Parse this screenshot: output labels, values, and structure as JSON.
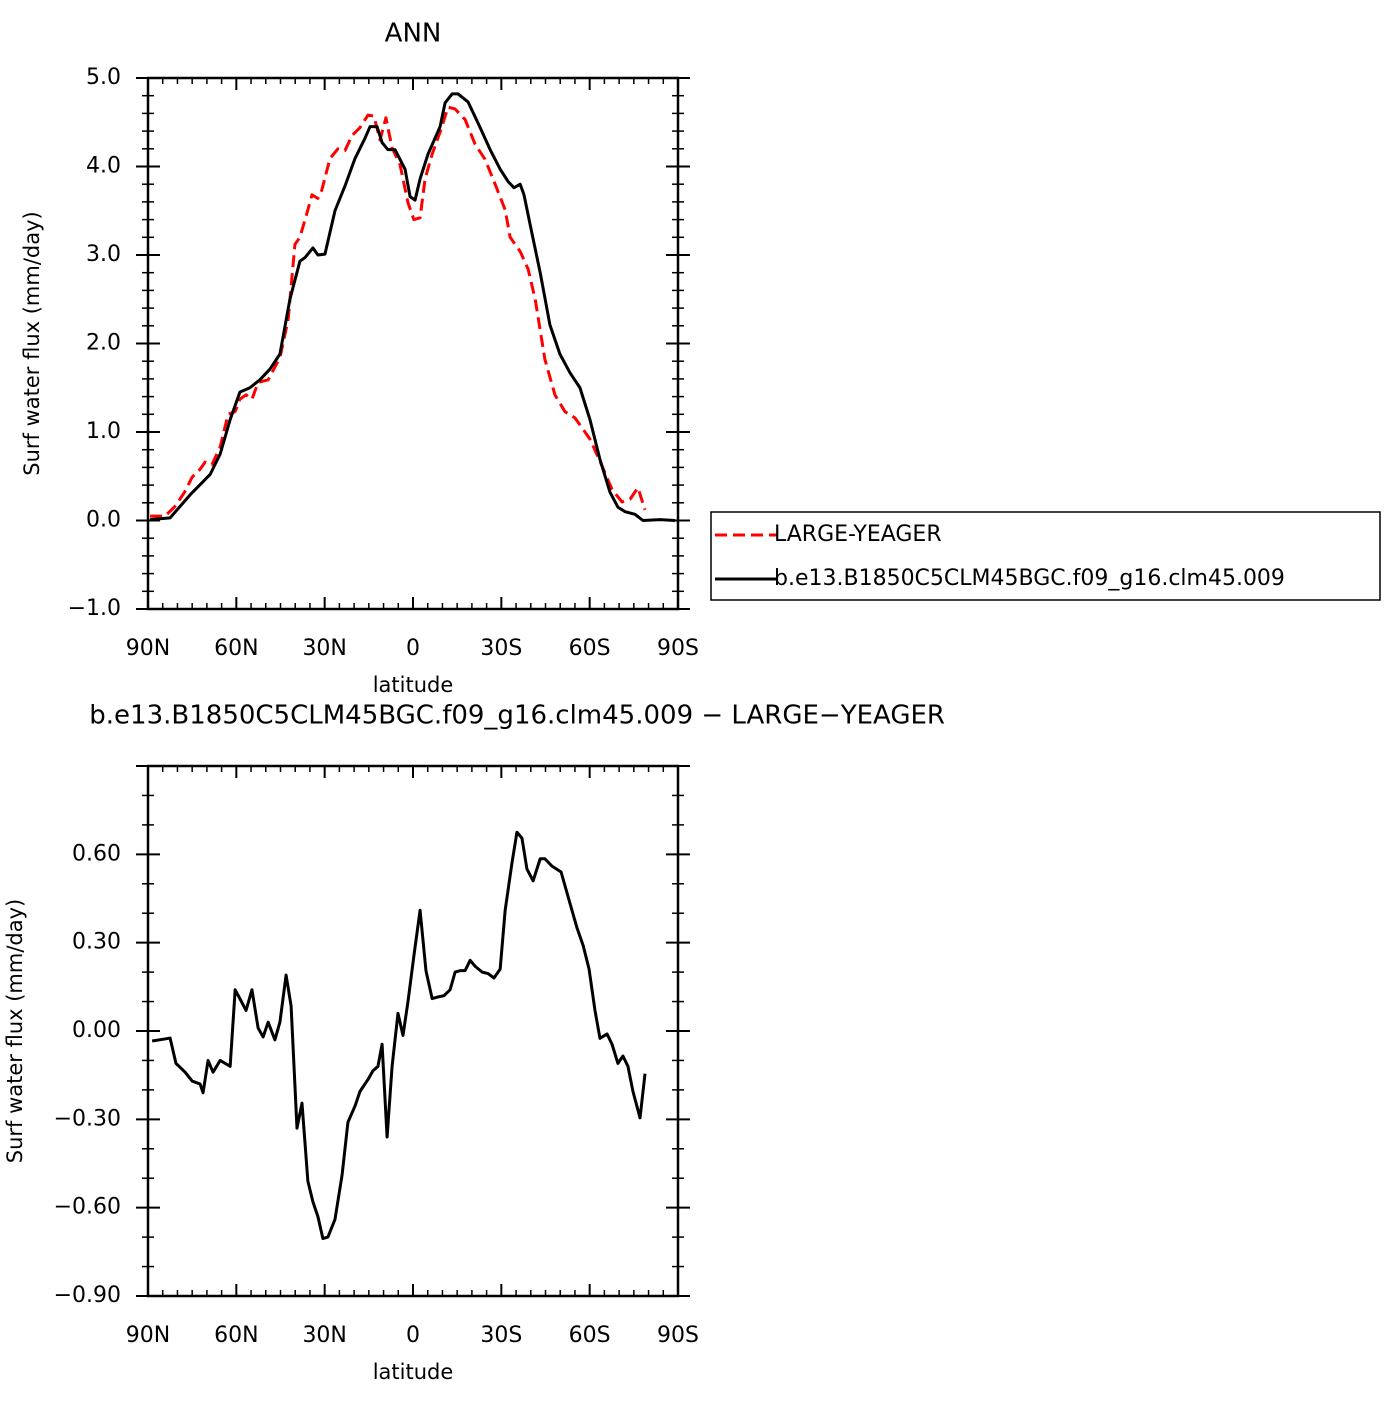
{
  "chart_data": [
    {
      "type": "line",
      "title": "ANN",
      "xlabel": "latitude",
      "ylabel": "Surf water flux (mm/day)",
      "xlim": [
        90,
        -90
      ],
      "xticks": [
        {
          "value": 90,
          "label": "90N"
        },
        {
          "value": 60,
          "label": "60N"
        },
        {
          "value": 30,
          "label": "30N"
        },
        0,
        {
          "value": -30,
          "label": "30S"
        },
        {
          "value": -60,
          "label": "60S"
        },
        {
          "value": -90,
          "label": "90S"
        }
      ],
      "ylim": [
        -1,
        5
      ],
      "yticks": [
        {
          "value": -1,
          "label": "−1.0"
        },
        {
          "value": 0,
          "label": "0.0"
        },
        {
          "value": 1,
          "label": "1.0"
        },
        {
          "value": 2,
          "label": "2.0"
        },
        {
          "value": 3,
          "label": "3.0"
        },
        {
          "value": 4,
          "label": "4.0"
        },
        {
          "value": 5,
          "label": "5.0"
        }
      ],
      "legend": "right",
      "series": [
        {
          "name": "LARGE-YEAGER",
          "color": "#ff0000",
          "line_style": "dashed",
          "x": [
            89.3,
            84.2,
            80.8,
            77.4,
            75,
            72.3,
            70.6,
            68.3,
            65.5,
            62.8,
            60.4,
            58.8,
            56.7,
            54.7,
            52.6,
            49.2,
            45.2,
            42.4,
            40.1,
            38.4,
            35.7,
            34.3,
            32.3,
            31,
            28.2,
            25.5,
            23.1,
            20.7,
            18,
            15.3,
            13.3,
            11.2,
            9.2,
            7.1,
            4.4,
            1.7,
            -0.3,
            -2.4,
            -4.1,
            -6.5,
            -9.2,
            -11.9,
            -14.3,
            -17.7,
            -21.1,
            -24.5,
            -27.9,
            -31.3,
            -33,
            -36.4,
            -39.1,
            -41.5,
            -44.8,
            -48.2,
            -51.6,
            -55,
            -60.1,
            -63.5,
            -67.6,
            -71,
            -73.7,
            -76.4,
            -78.8
          ],
          "values": [
            0.05,
            0.05,
            0.16,
            0.33,
            0.49,
            0.58,
            0.66,
            0.63,
            0.83,
            1.2,
            1.23,
            1.37,
            1.42,
            1.37,
            1.56,
            1.59,
            1.84,
            2.27,
            3.12,
            3.2,
            3.51,
            3.68,
            3.64,
            3.73,
            4.09,
            4.2,
            4.18,
            4.35,
            4.44,
            4.58,
            4.57,
            4.3,
            4.55,
            4.21,
            4.02,
            3.59,
            3.4,
            3.42,
            3.86,
            4.14,
            4.39,
            4.67,
            4.65,
            4.53,
            4.25,
            4.08,
            3.8,
            3.51,
            3.2,
            3.04,
            2.84,
            2.5,
            1.82,
            1.42,
            1.23,
            1.16,
            0.92,
            0.67,
            0.35,
            0.21,
            0.24,
            0.37,
            0.12
          ]
        },
        {
          "name": "b.e13.B1850C5CLM45BGC.f09_g16.clm45.009",
          "color": "#000000",
          "line_style": "solid",
          "x": [
            89.3,
            82.5,
            75.7,
            68.9,
            65.5,
            62.1,
            58.8,
            55.4,
            52,
            48.6,
            45.2,
            41.8,
            38.4,
            36.7,
            34,
            32.3,
            29.9,
            26.5,
            23.1,
            19.7,
            16.3,
            14.6,
            12.2,
            10.5,
            8.5,
            6.1,
            2.7,
            1,
            -0.7,
            -2.4,
            -5.1,
            -9.2,
            -10.9,
            -13.3,
            -15.3,
            -18.7,
            -21.1,
            -22.8,
            -26.2,
            -29.6,
            -32.3,
            -34.3,
            -36.4,
            -37.7,
            -39.8,
            -43.2,
            -46.5,
            -49.9,
            -53.3,
            -56.7,
            -60.1,
            -63.5,
            -66.9,
            -69.6,
            -72,
            -75.4,
            -78.1,
            -83.9,
            -89
          ],
          "values": [
            0.01,
            0.03,
            0.29,
            0.52,
            0.75,
            1.14,
            1.45,
            1.5,
            1.59,
            1.71,
            1.88,
            2.5,
            2.93,
            2.97,
            3.08,
            3.0,
            3.01,
            3.5,
            3.78,
            4.09,
            4.32,
            4.45,
            4.45,
            4.27,
            4.19,
            4.19,
            3.97,
            3.66,
            3.62,
            3.86,
            4.14,
            4.45,
            4.72,
            4.82,
            4.82,
            4.73,
            4.56,
            4.44,
            4.19,
            3.97,
            3.83,
            3.76,
            3.8,
            3.68,
            3.34,
            2.8,
            2.21,
            1.88,
            1.67,
            1.5,
            1.14,
            0.69,
            0.32,
            0.15,
            0.1,
            0.07,
            0.0,
            0.01,
            0.0
          ]
        }
      ]
    },
    {
      "type": "line",
      "title": "b.e13.B1850C5CLM45BGC.f09_g16.clm45.009 − LARGE−YEAGER",
      "xlabel": "latitude",
      "ylabel": "Surf water flux (mm/day)",
      "xlim": [
        90,
        -90
      ],
      "xticks": [
        {
          "value": 90,
          "label": "90N"
        },
        {
          "value": 60,
          "label": "60N"
        },
        {
          "value": 30,
          "label": "30N"
        },
        0,
        {
          "value": -30,
          "label": "30S"
        },
        {
          "value": -60,
          "label": "60S"
        },
        {
          "value": -90,
          "label": "90S"
        }
      ],
      "ylim": [
        -0.9,
        0.9
      ],
      "yticks": [
        {
          "value": -0.9,
          "label": "−0.90"
        },
        {
          "value": -0.6,
          "label": "−0.60"
        },
        {
          "value": -0.3,
          "label": "−0.30"
        },
        {
          "value": 0,
          "label": "0.00"
        },
        {
          "value": 0.3,
          "label": "0.30"
        },
        {
          "value": 0.6,
          "label": "0.60"
        }
      ],
      "color": "#000000",
      "x": [
        88.6,
        84.2,
        82.5,
        80.5,
        77.4,
        75,
        72.3,
        71.3,
        69.6,
        67.9,
        65.5,
        63.8,
        62.1,
        60.4,
        58.8,
        56.7,
        54.7,
        52.6,
        50.9,
        49.2,
        46.9,
        45.2,
        43.1,
        41.4,
        39.4,
        37.7,
        35.7,
        34,
        32.3,
        30.6,
        28.9,
        26.5,
        24.1,
        22.1,
        19.7,
        18,
        15.3,
        13.6,
        11.9,
        10.5,
        8.8,
        7.1,
        5.1,
        3.4,
        1.7,
        -0.3,
        -2.4,
        -4.4,
        -6.5,
        -8.2,
        -10.5,
        -12.6,
        -14.3,
        -16,
        -17.7,
        -19.4,
        -21.1,
        -23.5,
        -25.5,
        -27.5,
        -29.6,
        -31.3,
        -33.6,
        -35.3,
        -37,
        -38.7,
        -40.8,
        -43.2,
        -44.8,
        -47.2,
        -50.3,
        -52.7,
        -55.7,
        -57.8,
        -59.8,
        -61.8,
        -63.5,
        -65.9,
        -67.6,
        -69.6,
        -71.3,
        -73,
        -74.7,
        -77.1,
        -78.8
      ],
      "values": [
        -0.034,
        -0.027,
        -0.024,
        -0.11,
        -0.14,
        -0.17,
        -0.18,
        -0.21,
        -0.1,
        -0.14,
        -0.1,
        -0.11,
        -0.12,
        0.14,
        0.11,
        0.07,
        0.14,
        0.01,
        -0.02,
        0.03,
        -0.03,
        0.03,
        0.19,
        0.085,
        -0.33,
        -0.245,
        -0.51,
        -0.58,
        -0.63,
        -0.705,
        -0.7,
        -0.64,
        -0.49,
        -0.31,
        -0.255,
        -0.205,
        -0.165,
        -0.135,
        -0.12,
        -0.045,
        -0.36,
        -0.12,
        0.06,
        -0.015,
        0.1,
        0.255,
        0.41,
        0.205,
        0.11,
        0.115,
        0.12,
        0.14,
        0.2,
        0.205,
        0.205,
        0.24,
        0.22,
        0.2,
        0.195,
        0.18,
        0.21,
        0.41,
        0.57,
        0.675,
        0.655,
        0.55,
        0.51,
        0.585,
        0.585,
        0.56,
        0.54,
        0.455,
        0.35,
        0.29,
        0.21,
        0.07,
        -0.025,
        -0.01,
        -0.045,
        -0.11,
        -0.085,
        -0.12,
        -0.205,
        -0.295,
        -0.145
      ]
    }
  ]
}
